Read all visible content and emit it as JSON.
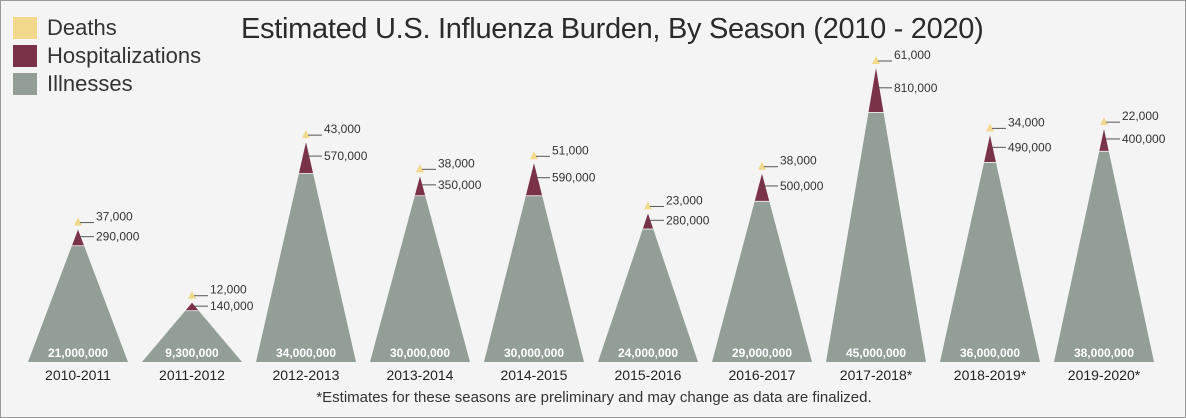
{
  "colors": {
    "deaths": "#f1d88a",
    "hospitalizations": "#7a3248",
    "illnesses": "#939e97"
  },
  "chart_data": {
    "type": "bar",
    "title": "Estimated U.S. Influenza Burden, By Season (2010 - 2020)",
    "legend": {
      "placement": "top-left",
      "entries": [
        "Deaths",
        "Hospitalizations",
        "Illnesses"
      ]
    },
    "categories": [
      "2010-2011",
      "2011-2012",
      "2012-2013",
      "2013-2014",
      "2014-2015",
      "2015-2016",
      "2016-2017",
      "2017-2018*",
      "2018-2019*",
      "2019-2020*"
    ],
    "series": [
      {
        "name": "Illnesses",
        "values": [
          21000000,
          9300000,
          34000000,
          30000000,
          30000000,
          24000000,
          29000000,
          45000000,
          36000000,
          38000000
        ],
        "labels": [
          "21,000,000",
          "9,300,000",
          "34,000,000",
          "30,000,000",
          "30,000,000",
          "24,000,000",
          "29,000,000",
          "45,000,000",
          "36,000,000",
          "38,000,000"
        ]
      },
      {
        "name": "Hospitalizations",
        "values": [
          290000,
          140000,
          570000,
          350000,
          590000,
          280000,
          500000,
          810000,
          490000,
          400000
        ],
        "labels": [
          "290,000",
          "140,000",
          "570,000",
          "350,000",
          "590,000",
          "280,000",
          "500,000",
          "810,000",
          "490,000",
          "400,000"
        ]
      },
      {
        "name": "Deaths",
        "values": [
          37000,
          12000,
          43000,
          38000,
          51000,
          23000,
          38000,
          61000,
          34000,
          22000
        ],
        "labels": [
          "37,000",
          "12,000",
          "43,000",
          "38,000",
          "51,000",
          "23,000",
          "38,000",
          "61,000",
          "34,000",
          "22,000"
        ]
      }
    ],
    "footnote": "*Estimates for these seasons are preliminary and may change as data are finalized."
  }
}
